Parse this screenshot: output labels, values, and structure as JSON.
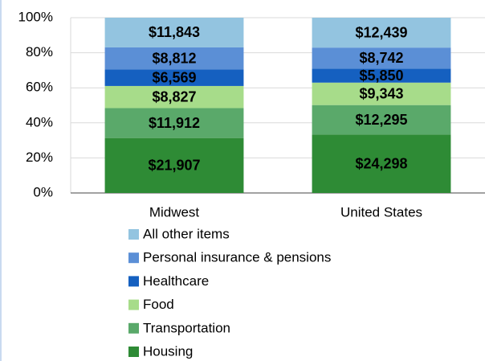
{
  "chart_data": {
    "type": "bar",
    "stacking": "percent",
    "categories": [
      "Midwest",
      "United States"
    ],
    "series": [
      {
        "name": "Housing",
        "color": "#2e8b35",
        "values": [
          21907,
          24298
        ],
        "value_labels": [
          "$21,907",
          "$24,298"
        ]
      },
      {
        "name": "Transportation",
        "color": "#5aa96a",
        "values": [
          11912,
          12295
        ],
        "value_labels": [
          "$11,912",
          "$12,295"
        ]
      },
      {
        "name": "Food",
        "color": "#a7dc8a",
        "values": [
          8827,
          9343
        ],
        "value_labels": [
          "$8,827",
          "$9,343"
        ]
      },
      {
        "name": "Healthcare",
        "color": "#1560c0",
        "values": [
          6569,
          5850
        ],
        "value_labels": [
          "$6,569",
          "$5,850"
        ]
      },
      {
        "name": "Personal insurance & pensions",
        "color": "#5b8fd6",
        "values": [
          8812,
          8742
        ],
        "value_labels": [
          "$8,812",
          "$8,742"
        ]
      },
      {
        "name": "All other items",
        "color": "#93c4e0",
        "values": [
          11843,
          12439
        ],
        "value_labels": [
          "$11,843",
          "$12,439"
        ]
      }
    ],
    "ylim": [
      0,
      100
    ],
    "yticks": [
      {
        "value": 0,
        "label": "0%"
      },
      {
        "value": 20,
        "label": "20%"
      },
      {
        "value": 40,
        "label": "40%"
      },
      {
        "value": 60,
        "label": "60%"
      },
      {
        "value": 80,
        "label": "80%"
      },
      {
        "value": 100,
        "label": "100%"
      }
    ],
    "grid": true,
    "legend": "bottom"
  }
}
